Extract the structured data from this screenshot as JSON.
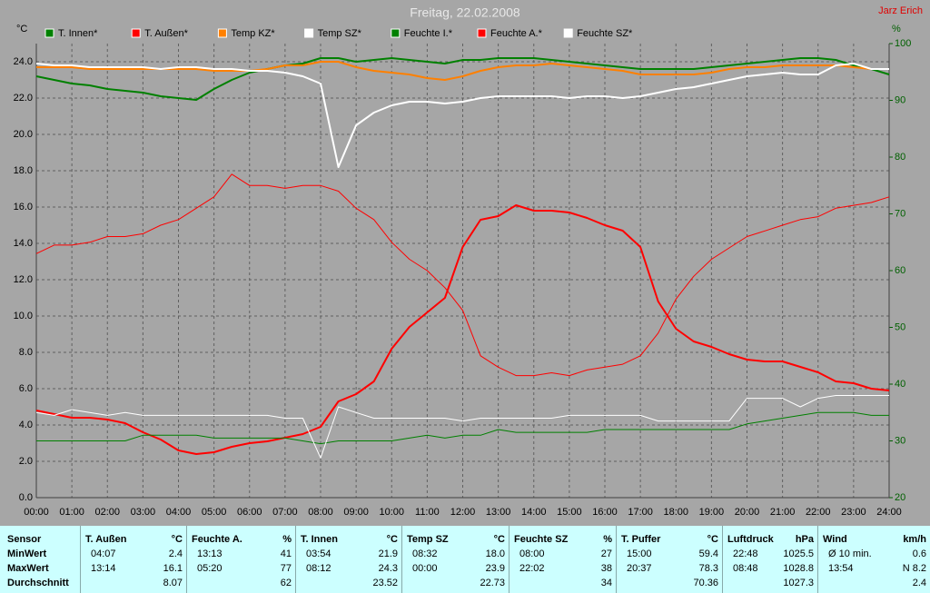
{
  "chart_data": {
    "type": "line",
    "title": "Freitag, 22.02.2008",
    "author": "Jarz Erich",
    "y_unit": "°C",
    "y2_unit": "%",
    "x": [
      0,
      0.5,
      1,
      1.5,
      2,
      2.5,
      3,
      3.5,
      4,
      4.5,
      5,
      5.5,
      6,
      6.5,
      7,
      7.5,
      8,
      8.5,
      9,
      9.5,
      10,
      10.5,
      11,
      11.5,
      12,
      12.5,
      13,
      13.5,
      14,
      14.5,
      15,
      15.5,
      16,
      16.5,
      17,
      17.5,
      18,
      18.5,
      19,
      19.5,
      20,
      20.5,
      21,
      21.5,
      22,
      22.5,
      23,
      23.5,
      24
    ],
    "xlim": [
      0,
      24
    ],
    "xticks": [
      {
        "value": 0,
        "label": "00:00"
      },
      {
        "value": 1,
        "label": "01:00"
      },
      {
        "value": 2,
        "label": "02:00"
      },
      {
        "value": 3,
        "label": "03:00"
      },
      {
        "value": 4,
        "label": "04:00"
      },
      {
        "value": 5,
        "label": "05:00"
      },
      {
        "value": 6,
        "label": "06:00"
      },
      {
        "value": 7,
        "label": "07:00"
      },
      {
        "value": 8,
        "label": "08:00"
      },
      {
        "value": 9,
        "label": "09:00"
      },
      {
        "value": 10,
        "label": "10:00"
      },
      {
        "value": 11,
        "label": "11:00"
      },
      {
        "value": 12,
        "label": "12:00"
      },
      {
        "value": 13,
        "label": "13:00"
      },
      {
        "value": 14,
        "label": "14:00"
      },
      {
        "value": 15,
        "label": "15:00"
      },
      {
        "value": 16,
        "label": "16:00"
      },
      {
        "value": 17,
        "label": "17:00"
      },
      {
        "value": 18,
        "label": "18:00"
      },
      {
        "value": 19,
        "label": "19:00"
      },
      {
        "value": 20,
        "label": "20:00"
      },
      {
        "value": 21,
        "label": "21:00"
      },
      {
        "value": 22,
        "label": "22:00"
      },
      {
        "value": 23,
        "label": "23:00"
      },
      {
        "value": 24,
        "label": "24:00"
      }
    ],
    "ylim": [
      0,
      25
    ],
    "yticks": [
      {
        "value": 0,
        "label": "0.0"
      },
      {
        "value": 2,
        "label": "2.0"
      },
      {
        "value": 4,
        "label": "4.0"
      },
      {
        "value": 6,
        "label": "6.0"
      },
      {
        "value": 8,
        "label": "8.0"
      },
      {
        "value": 10,
        "label": "10.0"
      },
      {
        "value": 12,
        "label": "12.0"
      },
      {
        "value": 14,
        "label": "14.0"
      },
      {
        "value": 16,
        "label": "16.0"
      },
      {
        "value": 18,
        "label": "18.0"
      },
      {
        "value": 20,
        "label": "20.0"
      },
      {
        "value": 22,
        "label": "22.0"
      },
      {
        "value": 24,
        "label": "24.0"
      }
    ],
    "y2lim": [
      20,
      100
    ],
    "y2ticks": [
      20,
      30,
      40,
      50,
      60,
      70,
      80,
      90,
      100
    ],
    "grid": true,
    "series": [
      {
        "name": "T. Innen*",
        "color": "#008000",
        "values": [
          23.2,
          23.0,
          22.8,
          22.7,
          22.5,
          22.4,
          22.3,
          22.1,
          22.0,
          21.9,
          22.5,
          23.0,
          23.4,
          23.6,
          23.8,
          23.9,
          24.2,
          24.2,
          24.0,
          24.1,
          24.2,
          24.1,
          24.0,
          23.9,
          24.1,
          24.1,
          24.2,
          24.2,
          24.2,
          24.1,
          24.0,
          23.9,
          23.8,
          23.7,
          23.6,
          23.6,
          23.6,
          23.6,
          23.7,
          23.8,
          23.9,
          24.0,
          24.1,
          24.2,
          24.2,
          24.1,
          23.8,
          23.6,
          23.3
        ]
      },
      {
        "name": "T. Außen*",
        "color": "#ff0000",
        "values": [
          4.8,
          4.6,
          4.4,
          4.4,
          4.3,
          4.1,
          3.6,
          3.2,
          2.6,
          2.4,
          2.5,
          2.8,
          3.0,
          3.1,
          3.3,
          3.5,
          3.9,
          5.3,
          5.7,
          6.4,
          8.2,
          9.4,
          10.2,
          11.0,
          13.8,
          15.3,
          15.5,
          16.1,
          15.8,
          15.8,
          15.7,
          15.4,
          15.0,
          14.7,
          13.8,
          10.8,
          9.3,
          8.6,
          8.3,
          7.9,
          7.6,
          7.5,
          7.5,
          7.2,
          6.9,
          6.4,
          6.3,
          6.0,
          5.9
        ]
      },
      {
        "name": "Temp KZ*",
        "color": "#ff8000",
        "values": [
          23.7,
          23.7,
          23.7,
          23.6,
          23.6,
          23.6,
          23.6,
          23.6,
          23.6,
          23.6,
          23.5,
          23.5,
          23.5,
          23.6,
          23.8,
          23.8,
          24.0,
          24.0,
          23.7,
          23.5,
          23.4,
          23.3,
          23.1,
          23.0,
          23.2,
          23.5,
          23.7,
          23.8,
          23.8,
          23.9,
          23.8,
          23.7,
          23.6,
          23.5,
          23.3,
          23.3,
          23.3,
          23.3,
          23.4,
          23.6,
          23.7,
          23.7,
          23.8,
          23.8,
          23.8,
          23.8,
          23.7,
          23.6,
          23.6
        ]
      },
      {
        "name": "Temp SZ*",
        "color": "#ffffff",
        "values": [
          23.9,
          23.8,
          23.8,
          23.7,
          23.7,
          23.7,
          23.7,
          23.6,
          23.7,
          23.7,
          23.6,
          23.6,
          23.5,
          23.5,
          23.4,
          23.2,
          22.8,
          18.2,
          20.5,
          21.2,
          21.6,
          21.8,
          21.8,
          21.7,
          21.8,
          22.0,
          22.1,
          22.1,
          22.1,
          22.1,
          22.0,
          22.1,
          22.1,
          22.0,
          22.1,
          22.3,
          22.5,
          22.6,
          22.8,
          23.0,
          23.2,
          23.3,
          23.4,
          23.3,
          23.3,
          23.8,
          23.9,
          23.6,
          23.6
        ]
      },
      {
        "name": "Feuchte I.*",
        "color": "#008000",
        "axis": "y2",
        "values": [
          30,
          30,
          30,
          30,
          30,
          30,
          31,
          31,
          31,
          31,
          30.5,
          30.5,
          30.5,
          30.5,
          30.5,
          30,
          29.5,
          30,
          30,
          30,
          30,
          30.5,
          31,
          30.5,
          31,
          31,
          32,
          31.5,
          31.5,
          31.5,
          31.5,
          31.5,
          32,
          32,
          32,
          32,
          32,
          32,
          32,
          32,
          33,
          33.5,
          34,
          34.5,
          35,
          35,
          35,
          34.5,
          34.5
        ]
      },
      {
        "name": "Feuchte A.*",
        "color": "#ff0000",
        "axis": "y2",
        "values": [
          63,
          64.5,
          64.5,
          65,
          66,
          66,
          66.5,
          68,
          69,
          71,
          73,
          77,
          75,
          75,
          74.5,
          75,
          75,
          74,
          71,
          69,
          65,
          62,
          60,
          57,
          53,
          45,
          43,
          41.5,
          41.5,
          42,
          41.5,
          42.5,
          43,
          43.5,
          45,
          49,
          55,
          59,
          62,
          64,
          66,
          67,
          68,
          69,
          69.5,
          71,
          71.5,
          72,
          73
        ]
      },
      {
        "name": "Feuchte SZ*",
        "color": "#ffffff",
        "axis": "y2",
        "values": [
          35,
          34.5,
          35.5,
          35,
          34.5,
          35,
          34.5,
          34.5,
          34.5,
          34.5,
          34.5,
          34.5,
          34.5,
          34.5,
          34,
          34,
          27,
          36,
          35,
          34,
          34,
          34,
          34,
          34,
          33.5,
          34,
          34,
          34,
          34,
          34,
          34.5,
          34.5,
          34.5,
          34.5,
          34.5,
          33.5,
          33.5,
          33.5,
          33.5,
          33.5,
          37.5,
          37.5,
          37.5,
          36,
          37.5,
          38,
          38,
          38,
          38
        ]
      }
    ]
  },
  "table": {
    "row_labels": [
      "Sensor",
      "MinWert",
      "MaxWert",
      "Durchschnitt"
    ],
    "columns": [
      {
        "name": "T. Außen",
        "unit": "°C",
        "min": [
          "04:07",
          2.4
        ],
        "max": [
          "13:14",
          16.1
        ],
        "avg": 8.07
      },
      {
        "name": "Feuchte A.",
        "unit": "%",
        "min": [
          "13:13",
          41
        ],
        "max": [
          "05:20",
          77
        ],
        "avg": 62
      },
      {
        "name": "T. Innen",
        "unit": "°C",
        "min": [
          "03:54",
          21.9
        ],
        "max": [
          "08:12",
          24.3
        ],
        "avg": 23.52
      },
      {
        "name": "Temp SZ",
        "unit": "°C",
        "min": [
          "08:32",
          "18.0"
        ],
        "max": [
          "00:00",
          23.9
        ],
        "avg": 22.73
      },
      {
        "name": "Feuchte SZ",
        "unit": "%",
        "min": [
          "08:00",
          27
        ],
        "max": [
          "22:02",
          38
        ],
        "avg": 34
      },
      {
        "name": "T. Puffer",
        "unit": "°C",
        "min": [
          "15:00",
          59.4
        ],
        "max": [
          "20:37",
          78.3
        ],
        "avg": 70.36
      },
      {
        "name": "Luftdruck",
        "unit": "hPa",
        "min": [
          "22:48",
          1025.5
        ],
        "max": [
          "08:48",
          1028.8
        ],
        "avg": 1027.3
      },
      {
        "name": "Wind",
        "unit": "km/h",
        "min": [
          "Ø 10 min.",
          0.6
        ],
        "max": [
          "13:54",
          "N 8.2"
        ],
        "avg": 2.4
      }
    ]
  }
}
